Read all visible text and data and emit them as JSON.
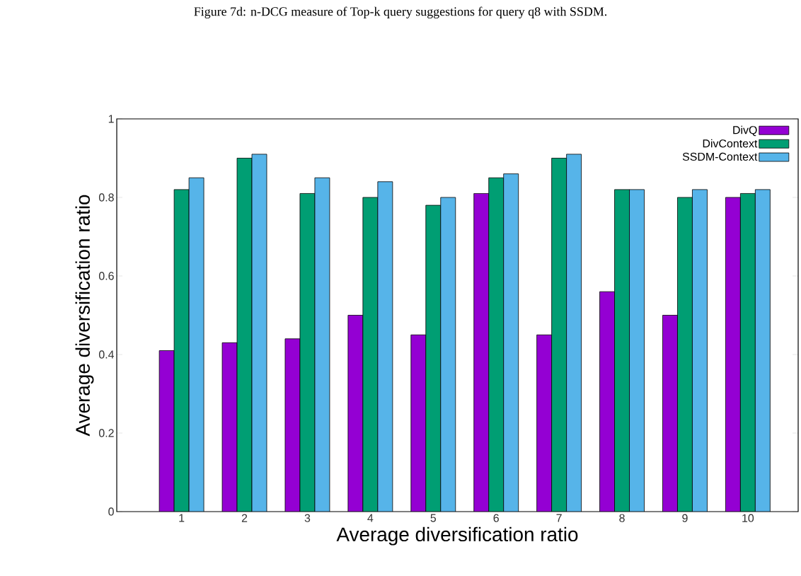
{
  "chart_data": {
    "type": "bar",
    "title": "Figure 7d: n-DCG measure of Top-k query suggestions for query q8 with SSDM.",
    "xlabel": "Average diversification ratio",
    "ylabel": "Average diversification ratio",
    "categories": [
      "1",
      "2",
      "3",
      "4",
      "5",
      "6",
      "7",
      "8",
      "9",
      "10"
    ],
    "series": [
      {
        "name": "DivQ",
        "color": "#9400d3",
        "values": [
          0.41,
          0.43,
          0.44,
          0.5,
          0.45,
          0.81,
          0.45,
          0.56,
          0.5,
          0.8
        ]
      },
      {
        "name": "DivContext",
        "color": "#009e73",
        "values": [
          0.82,
          0.9,
          0.81,
          0.8,
          0.78,
          0.85,
          0.9,
          0.82,
          0.8,
          0.81
        ]
      },
      {
        "name": "SSDM-Context",
        "color": "#56b4e9",
        "values": [
          0.85,
          0.91,
          0.85,
          0.84,
          0.8,
          0.86,
          0.91,
          0.82,
          0.82,
          0.82
        ]
      }
    ],
    "ylim": [
      0,
      1
    ],
    "yticks": [
      0,
      0.2,
      0.4,
      0.6,
      0.8,
      1
    ],
    "grid": false,
    "legend": "top right"
  }
}
